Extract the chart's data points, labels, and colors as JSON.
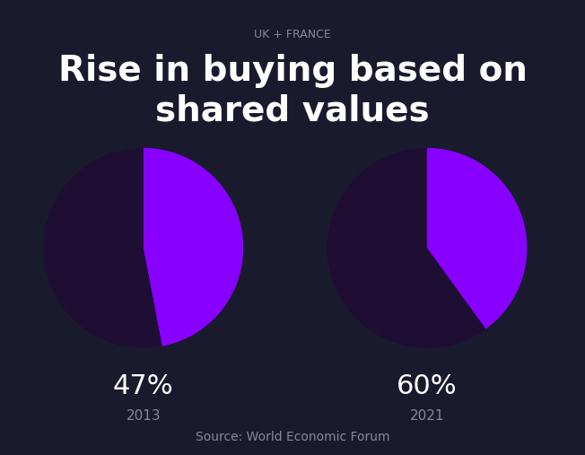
{
  "background_color": "#1a1a2e",
  "subtitle": "UK + FRANCE",
  "subtitle_color": "#888899",
  "subtitle_fontsize": 9,
  "title": "Rise in buying based on\nshared values",
  "title_color": "#ffffff",
  "title_fontsize": 28,
  "pie1_values": [
    47,
    53
  ],
  "pie2_values": [
    60,
    40
  ],
  "pie_colors_highlight": "#8800ff",
  "pie_colors_dark": "#1e0e33",
  "label1_pct": "47%",
  "label1_year": "2013",
  "label2_pct": "60%",
  "label2_year": "2021",
  "label_pct_color": "#ffffff",
  "label_pct_fontsize": 22,
  "label_year_color": "#888899",
  "label_year_fontsize": 11,
  "source_text": "Source: World Economic Forum",
  "source_color": "#888899",
  "source_fontsize": 10
}
